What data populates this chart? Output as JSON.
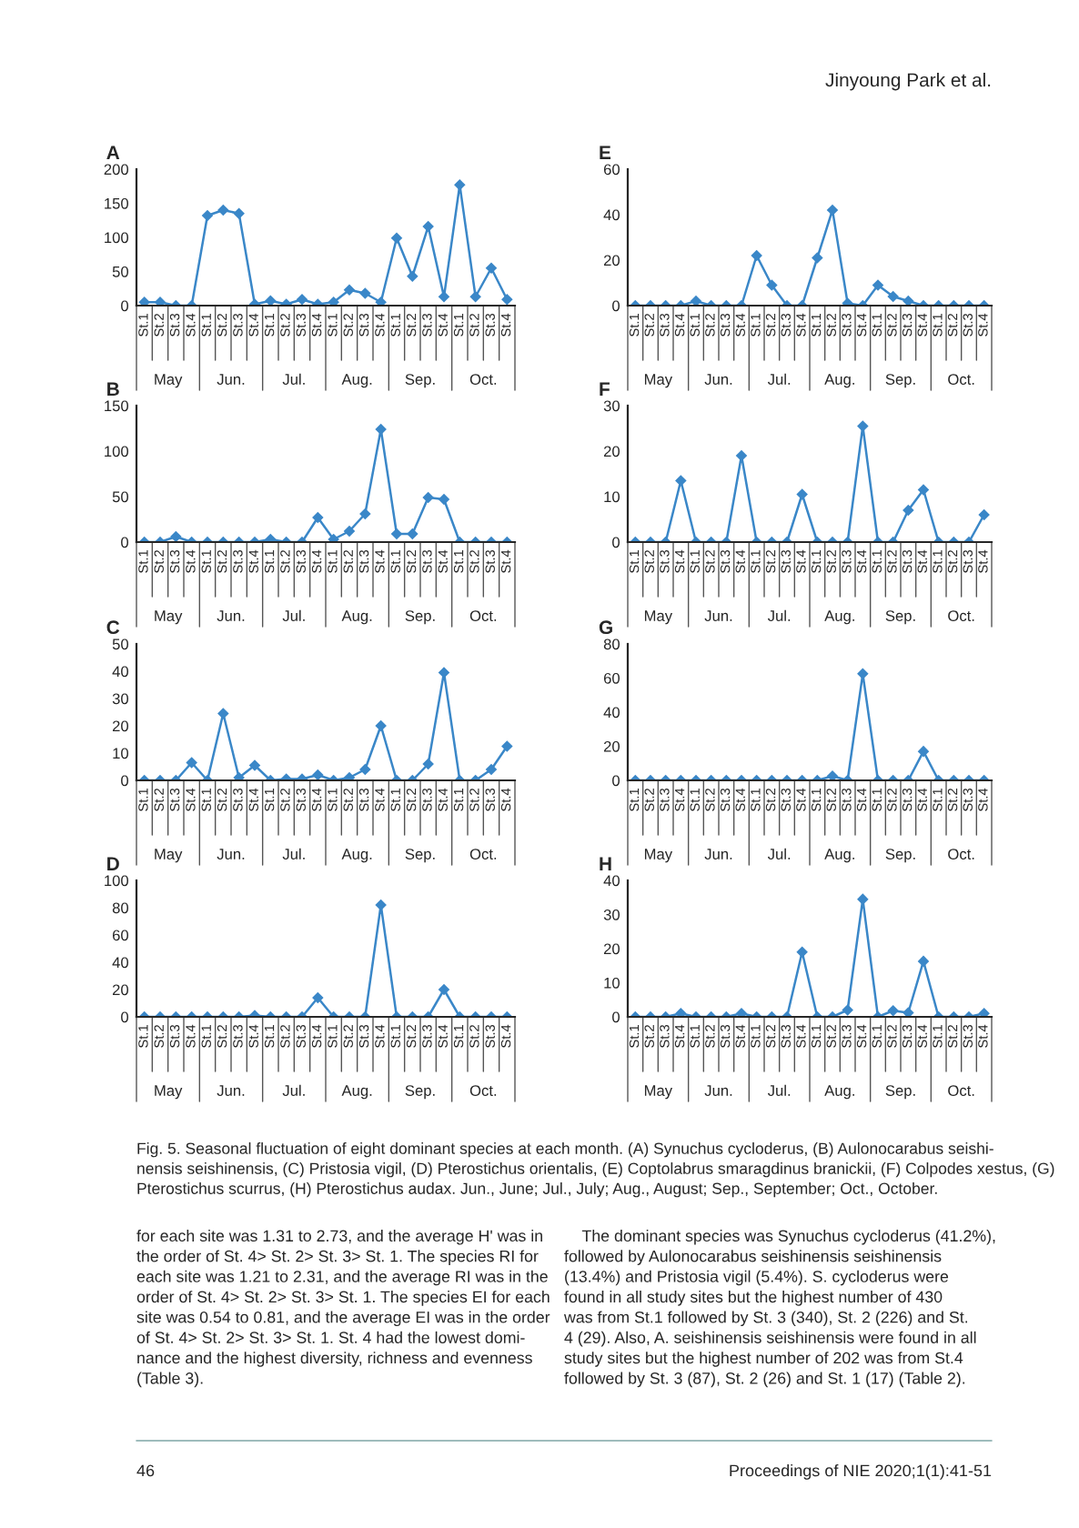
{
  "chart_data": [
    {
      "type": "line",
      "title": "A",
      "categories": [
        "St.1",
        "St.2",
        "St.3",
        "St.4",
        "St.1",
        "St.2",
        "St.3",
        "St.4",
        "St.1",
        "St.2",
        "St.3",
        "St.4",
        "St.1",
        "St.2",
        "St.3",
        "St.4",
        "St.1",
        "St.2",
        "St.3",
        "St.4",
        "St.1",
        "St.2",
        "St.3",
        "St.4"
      ],
      "series": [
        {
          "color": "#3a87c8",
          "values": [
            5,
            5,
            0,
            0,
            132,
            140,
            135,
            2,
            7,
            2,
            9,
            2,
            5,
            23,
            18,
            5,
            99,
            43,
            116,
            13,
            177,
            13,
            55,
            9
          ]
        }
      ],
      "ylim": [
        0,
        200
      ],
      "yticks": [
        0,
        50,
        100,
        150,
        200
      ],
      "marker": "diamond",
      "annotations": [
        "May",
        "Jun.",
        "Jul.",
        "Aug.",
        "Sep.",
        "Oct."
      ]
    },
    {
      "type": "line",
      "title": "B",
      "categories": [
        "St.1",
        "St.2",
        "St.3",
        "St.4",
        "St.1",
        "St.2",
        "St.3",
        "St.4",
        "St.1",
        "St.2",
        "St.3",
        "St.4",
        "St.1",
        "St.2",
        "St.3",
        "St.4",
        "St.1",
        "St.2",
        "St.3",
        "St.4",
        "St.1",
        "St.2",
        "St.3",
        "St.4"
      ],
      "series": [
        {
          "color": "#3a87c8",
          "values": [
            0,
            0,
            6,
            0,
            0,
            0,
            0,
            0,
            3,
            0,
            0,
            27,
            3,
            12,
            31,
            124,
            9,
            9,
            49,
            47,
            0,
            0,
            0,
            0
          ]
        }
      ],
      "ylim": [
        0,
        150
      ],
      "yticks": [
        0,
        50,
        100,
        150
      ],
      "marker": "diamond",
      "annotations": [
        "May",
        "Jun.",
        "Jul.",
        "Aug.",
        "Sep.",
        "Oct."
      ]
    },
    {
      "type": "line",
      "title": "C",
      "categories": [
        "St.1",
        "St.2",
        "St.3",
        "St.4",
        "St.1",
        "St.2",
        "St.3",
        "St.4",
        "St.1",
        "St.2",
        "St.3",
        "St.4",
        "St.1",
        "St.2",
        "St.3",
        "St.4",
        "St.1",
        "St.2",
        "St.3",
        "St.4",
        "St.1",
        "St.2",
        "St.3",
        "St.4"
      ],
      "series": [
        {
          "color": "#3a87c8",
          "values": [
            0,
            0,
            0,
            6.5,
            0,
            24.5,
            1,
            5.5,
            0,
            0.5,
            0.5,
            2,
            0,
            1,
            4,
            20,
            0,
            0,
            6,
            39.5,
            0,
            0,
            4,
            12.5
          ]
        }
      ],
      "ylim": [
        0,
        50
      ],
      "yticks": [
        0,
        10,
        20,
        30,
        40,
        50
      ],
      "marker": "diamond",
      "annotations": [
        "May",
        "Jun.",
        "Jul.",
        "Aug.",
        "Sep.",
        "Oct."
      ]
    },
    {
      "type": "line",
      "title": "D",
      "categories": [
        "St.1",
        "St.2",
        "St.3",
        "St.4",
        "St.1",
        "St.2",
        "St.3",
        "St.4",
        "St.1",
        "St.2",
        "St.3",
        "St.4",
        "St.1",
        "St.2",
        "St.3",
        "St.4",
        "St.1",
        "St.2",
        "St.3",
        "St.4",
        "St.1",
        "St.2",
        "St.3",
        "St.4"
      ],
      "series": [
        {
          "color": "#3a87c8",
          "values": [
            0,
            0,
            0,
            0,
            0,
            0,
            0,
            1,
            0,
            0,
            0,
            14,
            0,
            0,
            0,
            82,
            0,
            0,
            0,
            20,
            0,
            0,
            0,
            0
          ]
        }
      ],
      "ylim": [
        0,
        100
      ],
      "yticks": [
        0,
        20,
        40,
        60,
        80,
        100
      ],
      "marker": "diamond",
      "annotations": [
        "May",
        "Jun.",
        "Jul.",
        "Aug.",
        "Sep.",
        "Oct."
      ]
    },
    {
      "type": "line",
      "title": "E",
      "categories": [
        "St.1",
        "St.2",
        "St.3",
        "St.4",
        "St.1",
        "St.2",
        "St.3",
        "St.4",
        "St.1",
        "St.2",
        "St.3",
        "St.4",
        "St.1",
        "St.2",
        "St.3",
        "St.4",
        "St.1",
        "St.2",
        "St.3",
        "St.4",
        "St.1",
        "St.2",
        "St.3",
        "St.4"
      ],
      "series": [
        {
          "color": "#3a87c8",
          "values": [
            0,
            0,
            0,
            0,
            2,
            0,
            0,
            0,
            22,
            9,
            0,
            0,
            21,
            42,
            1,
            0,
            9,
            4,
            2,
            0,
            0,
            0,
            0,
            0
          ]
        }
      ],
      "ylim": [
        0,
        60
      ],
      "yticks": [
        0,
        20,
        40,
        60
      ],
      "marker": "diamond",
      "annotations": [
        "May",
        "Jun.",
        "Jul.",
        "Aug.",
        "Sep.",
        "Oct."
      ]
    },
    {
      "type": "line",
      "title": "F",
      "categories": [
        "St.1",
        "St.2",
        "St.3",
        "St.4",
        "St.1",
        "St.2",
        "St.3",
        "St.4",
        "St.1",
        "St.2",
        "St.3",
        "St.4",
        "St.1",
        "St.2",
        "St.3",
        "St.4",
        "St.1",
        "St.2",
        "St.3",
        "St.4",
        "St.1",
        "St.2",
        "St.3",
        "St.4"
      ],
      "series": [
        {
          "color": "#3a87c8",
          "values": [
            0,
            0,
            0,
            13.5,
            0,
            0,
            0,
            19,
            0,
            0,
            0,
            10.5,
            0,
            0,
            0,
            25.5,
            0,
            0,
            7,
            11.5,
            0,
            0,
            0,
            6
          ]
        }
      ],
      "ylim": [
        0,
        30
      ],
      "yticks": [
        0,
        10,
        20,
        30
      ],
      "marker": "diamond",
      "annotations": [
        "May",
        "Jun.",
        "Jul.",
        "Aug.",
        "Sep.",
        "Oct."
      ]
    },
    {
      "type": "line",
      "title": "G",
      "categories": [
        "St.1",
        "St.2",
        "St.3",
        "St.4",
        "St.1",
        "St.2",
        "St.3",
        "St.4",
        "St.1",
        "St.2",
        "St.3",
        "St.4",
        "St.1",
        "St.2",
        "St.3",
        "St.4",
        "St.1",
        "St.2",
        "St.3",
        "St.4",
        "St.1",
        "St.2",
        "St.3",
        "St.4"
      ],
      "series": [
        {
          "color": "#3a87c8",
          "values": [
            0,
            0,
            0,
            0,
            0,
            0,
            0,
            0,
            0,
            0,
            0,
            0,
            0,
            2.5,
            0,
            62.5,
            0,
            0,
            0,
            17,
            0,
            0,
            0,
            0
          ]
        }
      ],
      "ylim": [
        0,
        80
      ],
      "yticks": [
        0,
        20,
        40,
        60,
        80
      ],
      "marker": "diamond",
      "annotations": [
        "May",
        "Jun.",
        "Jul.",
        "Aug.",
        "Sep.",
        "Oct."
      ]
    },
    {
      "type": "line",
      "title": "H",
      "categories": [
        "St.1",
        "St.2",
        "St.3",
        "St.4",
        "St.1",
        "St.2",
        "St.3",
        "St.4",
        "St.1",
        "St.2",
        "St.3",
        "St.4",
        "St.1",
        "St.2",
        "St.3",
        "St.4",
        "St.1",
        "St.2",
        "St.3",
        "St.4",
        "St.1",
        "St.2",
        "St.3",
        "St.4"
      ],
      "series": [
        {
          "color": "#3a87c8",
          "values": [
            0,
            0,
            0,
            1,
            0,
            0,
            0,
            1,
            0,
            0,
            0,
            19,
            0,
            0,
            2,
            34.5,
            0,
            1.8,
            1.2,
            16.3,
            0,
            0,
            0,
            1
          ]
        }
      ],
      "ylim": [
        0,
        40
      ],
      "yticks": [
        0,
        10,
        20,
        30,
        40
      ],
      "marker": "diamond",
      "annotations": [
        "May",
        "Jun.",
        "Jul.",
        "Aug.",
        "Sep.",
        "Oct."
      ]
    },
    {
      "type": "other",
      "annotations": [
        "Jinyoung Park et al.",
        "Fig. 5. Seasonal fluctuation of eight dominant species at each month. (A) Synuchus cycloderus, (B) Aulonocarabus seishi-\nnensis seishinensis, (C) Pristosia vigil, (D) Pterostichus orientalis, (E) Coptolabrus smaragdinus branickii, (F) Colpodes xestus, (G)\nPterostichus scurrus, (H) Pterostichus audax. Jun., June; Jul., July; Aug., August; Sep., September; Oct., October.",
        "for each site was 1.31 to 2.73, and the average H' was in\nthe order of St. 4> St. 2> St. 3> St. 1. The species RI for\neach site was 1.21 to 2.31, and the average RI was in the\norder of St. 4> St. 2> St. 3> St. 1. The species EI for each\nsite was 0.54 to 0.81, and the average EI was in the order\nof St. 4> St. 2> St. 3> St. 1. St. 4 had the lowest domi-\nnance and the highest diversity, richness and evenness\n(Table 3).",
        "    The dominant species was Synuchus cycloderus (41.2%),\nfollowed by Aulonocarabus seishinensis seishinensis\n(13.4%) and Pristosia vigil (5.4%). S. cycloderus were\nfound in all study sites but the highest number of 430\nwas from St.1 followed by St. 3 (340), St. 2 (226) and St.\n4 (29). Also, A. seishinensis seishinensis were found in all\nstudy sites but the highest number of 202 was from St.4\nfollowed by St. 3 (87), St. 2 (26) and St. 1 (17) (Table 2).",
        "46",
        "Proceedings of NIE 2020;1(1):41-51"
      ]
    }
  ]
}
